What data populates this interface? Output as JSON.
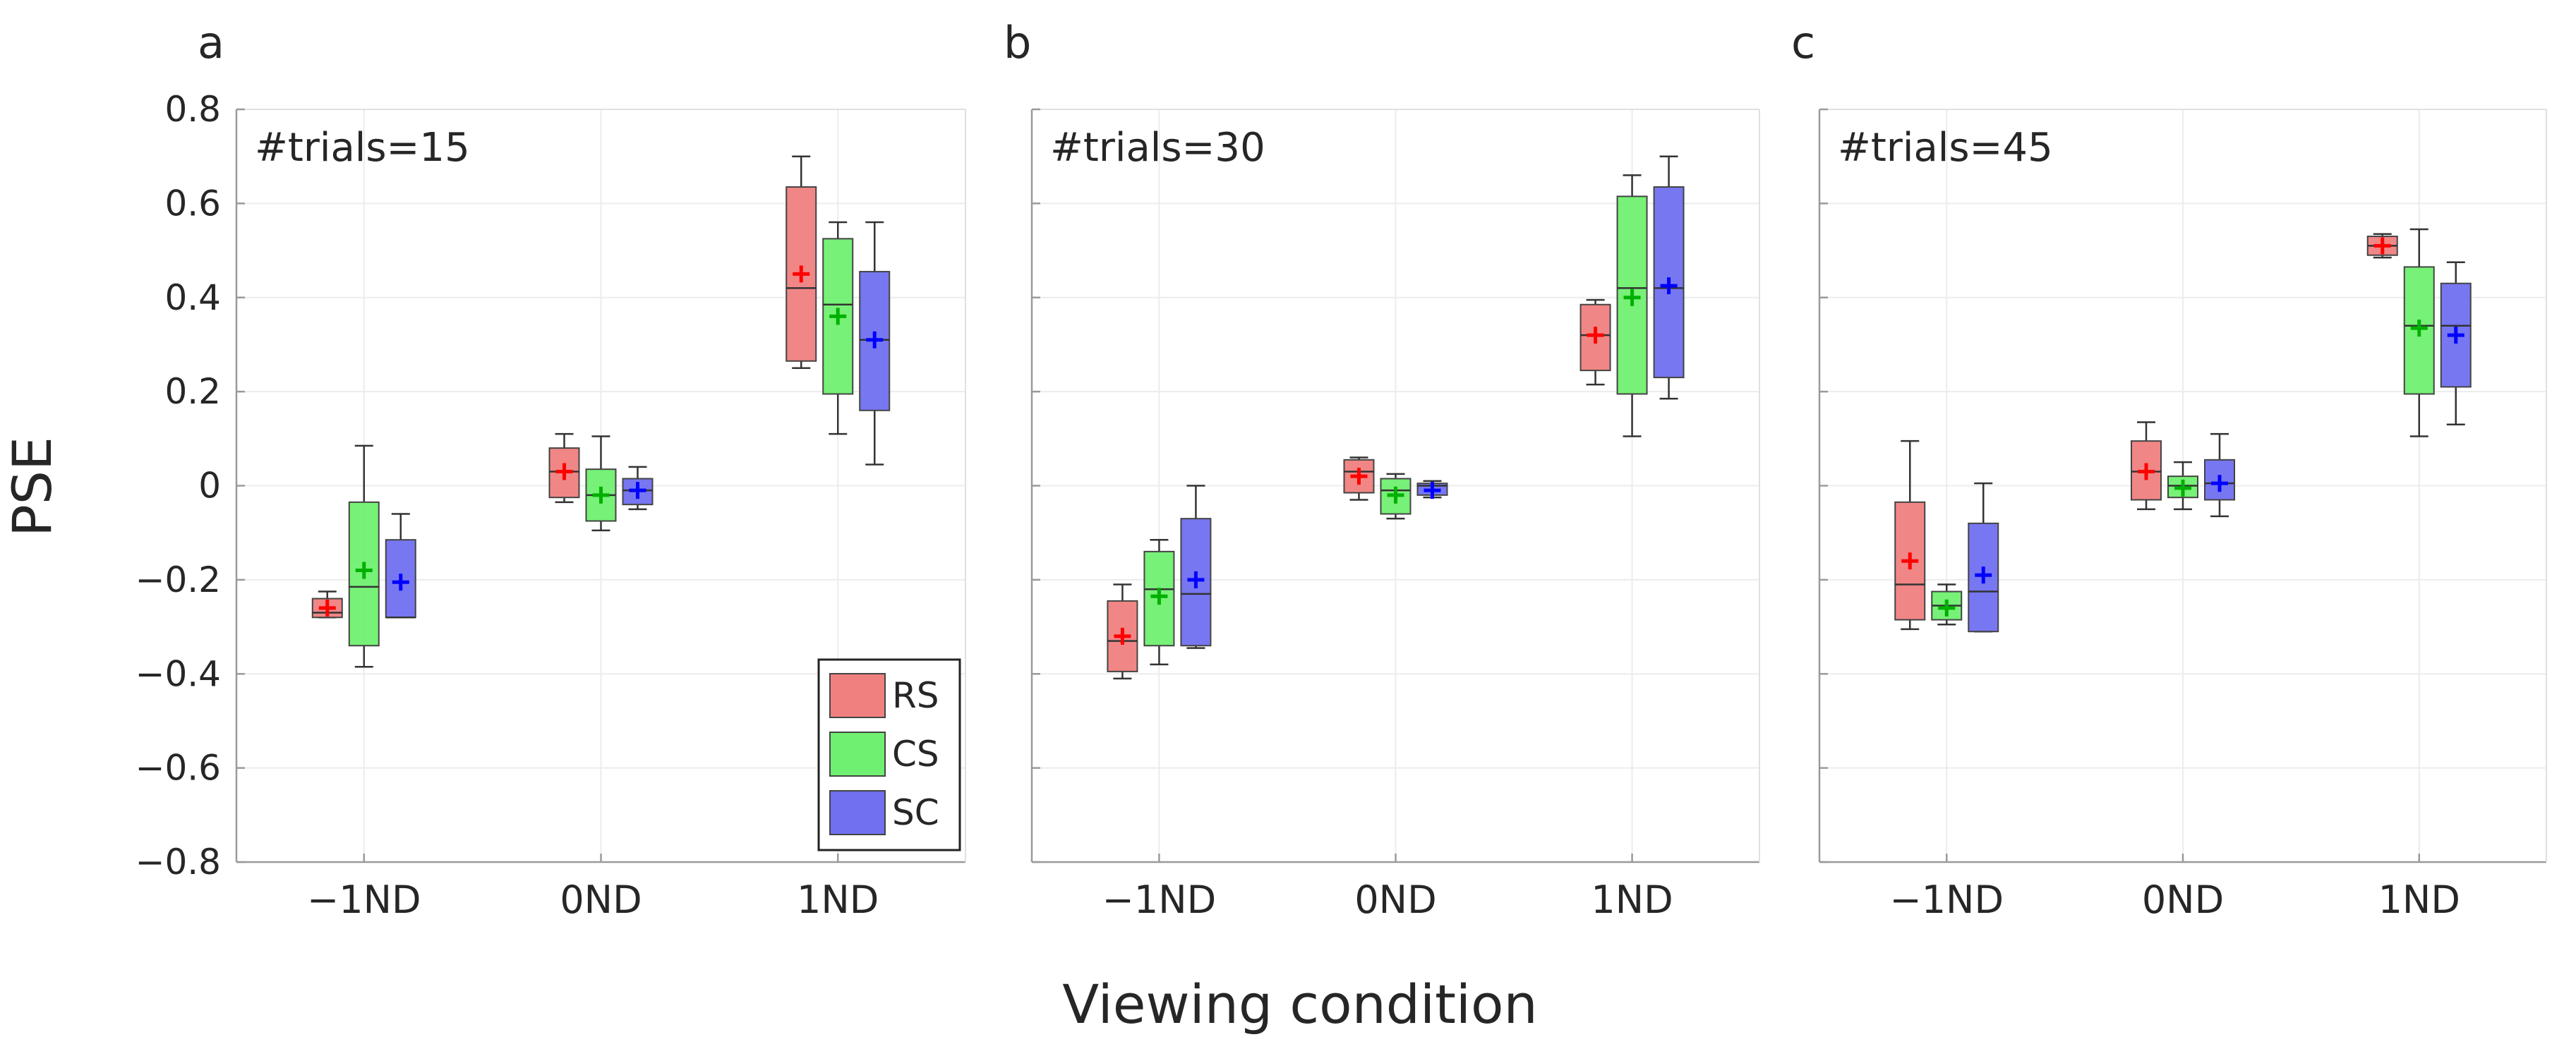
{
  "figure": {
    "ylabel": "PSE",
    "xlabel": "Viewing condition"
  },
  "legend": {
    "items": [
      {
        "label": "RS",
        "color": "#f08080"
      },
      {
        "label": "CS",
        "color": "#70f070"
      },
      {
        "label": "SC",
        "color": "#7070f0"
      }
    ],
    "placement": "bottom-right of panel a"
  },
  "chart_data": [
    {
      "type": "boxplot",
      "panel_label": "a",
      "annotation": "#trials=15",
      "categories": [
        "−1ND",
        "0ND",
        "1ND"
      ],
      "yticks": [
        "0.8",
        "0.6",
        "0.4",
        "0.2",
        "0",
        "−0.2",
        "−0.4",
        "−0.6",
        "−0.8"
      ],
      "ylim": [
        -0.8,
        0.8
      ],
      "grid": true,
      "series": [
        {
          "name": "RS",
          "color": "#f08080",
          "marker_color": "#ff0000",
          "boxes": [
            {
              "q1": -0.28,
              "median": -0.27,
              "q3": -0.24,
              "whisker_low": -0.28,
              "whisker_high": -0.225,
              "mean": -0.26
            },
            {
              "q1": -0.025,
              "median": 0.03,
              "q3": 0.08,
              "whisker_low": -0.035,
              "whisker_high": 0.11,
              "mean": 0.03
            },
            {
              "q1": 0.265,
              "median": 0.42,
              "q3": 0.635,
              "whisker_low": 0.25,
              "whisker_high": 0.7,
              "mean": 0.45
            }
          ]
        },
        {
          "name": "CS",
          "color": "#70f070",
          "marker_color": "#00b000",
          "boxes": [
            {
              "q1": -0.34,
              "median": -0.215,
              "q3": -0.035,
              "whisker_low": -0.385,
              "whisker_high": 0.085,
              "mean": -0.18
            },
            {
              "q1": -0.075,
              "median": -0.02,
              "q3": 0.035,
              "whisker_low": -0.095,
              "whisker_high": 0.105,
              "mean": -0.02
            },
            {
              "q1": 0.195,
              "median": 0.385,
              "q3": 0.525,
              "whisker_low": 0.11,
              "whisker_high": 0.56,
              "mean": 0.36
            }
          ]
        },
        {
          "name": "SC",
          "color": "#7070f0",
          "marker_color": "#0000ff",
          "boxes": [
            {
              "q1": -0.28,
              "median": -0.28,
              "q3": -0.115,
              "whisker_low": -0.28,
              "whisker_high": -0.06,
              "mean": -0.205
            },
            {
              "q1": -0.04,
              "median": -0.01,
              "q3": 0.015,
              "whisker_low": -0.05,
              "whisker_high": 0.04,
              "mean": -0.01
            },
            {
              "q1": 0.16,
              "median": 0.31,
              "q3": 0.455,
              "whisker_low": 0.045,
              "whisker_high": 0.56,
              "mean": 0.31
            }
          ]
        }
      ]
    },
    {
      "type": "boxplot",
      "panel_label": "b",
      "annotation": "#trials=30",
      "categories": [
        "−1ND",
        "0ND",
        "1ND"
      ],
      "ylim": [
        -0.8,
        0.8
      ],
      "grid": true,
      "series": [
        {
          "name": "RS",
          "color": "#f08080",
          "marker_color": "#ff0000",
          "boxes": [
            {
              "q1": -0.395,
              "median": -0.33,
              "q3": -0.245,
              "whisker_low": -0.41,
              "whisker_high": -0.21,
              "mean": -0.32
            },
            {
              "q1": -0.015,
              "median": 0.03,
              "q3": 0.055,
              "whisker_low": -0.03,
              "whisker_high": 0.06,
              "mean": 0.02
            },
            {
              "q1": 0.245,
              "median": 0.32,
              "q3": 0.385,
              "whisker_low": 0.215,
              "whisker_high": 0.395,
              "mean": 0.32
            }
          ]
        },
        {
          "name": "CS",
          "color": "#70f070",
          "marker_color": "#00b000",
          "boxes": [
            {
              "q1": -0.34,
              "median": -0.22,
              "q3": -0.14,
              "whisker_low": -0.38,
              "whisker_high": -0.115,
              "mean": -0.235
            },
            {
              "q1": -0.06,
              "median": -0.01,
              "q3": 0.015,
              "whisker_low": -0.07,
              "whisker_high": 0.025,
              "mean": -0.02
            },
            {
              "q1": 0.195,
              "median": 0.42,
              "q3": 0.615,
              "whisker_low": 0.105,
              "whisker_high": 0.66,
              "mean": 0.4
            }
          ]
        },
        {
          "name": "SC",
          "color": "#7070f0",
          "marker_color": "#0000ff",
          "boxes": [
            {
              "q1": -0.34,
              "median": -0.23,
              "q3": -0.07,
              "whisker_low": -0.345,
              "whisker_high": 0.0,
              "mean": -0.2
            },
            {
              "q1": -0.02,
              "median": 0.0,
              "q3": 0.005,
              "whisker_low": -0.025,
              "whisker_high": 0.01,
              "mean": -0.01
            },
            {
              "q1": 0.23,
              "median": 0.42,
              "q3": 0.635,
              "whisker_low": 0.185,
              "whisker_high": 0.7,
              "mean": 0.425
            }
          ]
        }
      ]
    },
    {
      "type": "boxplot",
      "panel_label": "c",
      "annotation": "#trials=45",
      "categories": [
        "−1ND",
        "0ND",
        "1ND"
      ],
      "ylim": [
        -0.8,
        0.8
      ],
      "grid": true,
      "series": [
        {
          "name": "RS",
          "color": "#f08080",
          "marker_color": "#ff0000",
          "boxes": [
            {
              "q1": -0.285,
              "median": -0.21,
              "q3": -0.035,
              "whisker_low": -0.305,
              "whisker_high": 0.095,
              "mean": -0.16
            },
            {
              "q1": -0.03,
              "median": 0.03,
              "q3": 0.095,
              "whisker_low": -0.05,
              "whisker_high": 0.135,
              "mean": 0.03
            },
            {
              "q1": 0.49,
              "median": 0.51,
              "q3": 0.53,
              "whisker_low": 0.485,
              "whisker_high": 0.535,
              "mean": 0.51
            }
          ]
        },
        {
          "name": "CS",
          "color": "#70f070",
          "marker_color": "#00b000",
          "boxes": [
            {
              "q1": -0.285,
              "median": -0.255,
              "q3": -0.225,
              "whisker_low": -0.295,
              "whisker_high": -0.21,
              "mean": -0.26
            },
            {
              "q1": -0.025,
              "median": 0.0,
              "q3": 0.02,
              "whisker_low": -0.05,
              "whisker_high": 0.05,
              "mean": -0.005
            },
            {
              "q1": 0.195,
              "median": 0.34,
              "q3": 0.465,
              "whisker_low": 0.105,
              "whisker_high": 0.545,
              "mean": 0.335
            }
          ]
        },
        {
          "name": "SC",
          "color": "#7070f0",
          "marker_color": "#0000ff",
          "boxes": [
            {
              "q1": -0.31,
              "median": -0.225,
              "q3": -0.08,
              "whisker_low": -0.31,
              "whisker_high": 0.005,
              "mean": -0.19
            },
            {
              "q1": -0.03,
              "median": 0.005,
              "q3": 0.055,
              "whisker_low": -0.065,
              "whisker_high": 0.11,
              "mean": 0.005
            },
            {
              "q1": 0.21,
              "median": 0.34,
              "q3": 0.43,
              "whisker_low": 0.13,
              "whisker_high": 0.475,
              "mean": 0.32
            }
          ]
        }
      ]
    }
  ]
}
